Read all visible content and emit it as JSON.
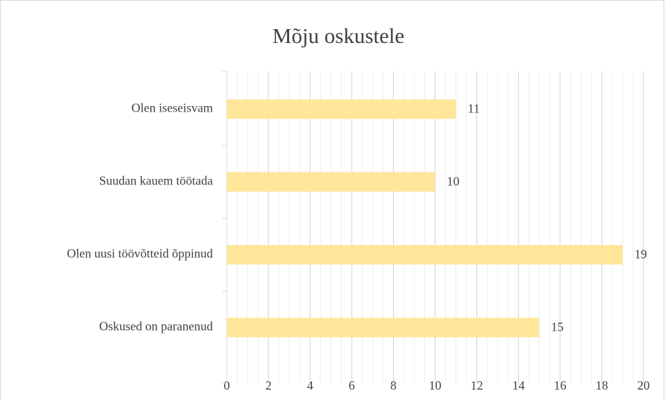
{
  "chart_data": {
    "type": "bar",
    "orientation": "horizontal",
    "title": "Mõju oskustele",
    "categories": [
      "Olen iseseisvam",
      "Suudan kauem töötada",
      "Olen uusi töövõtteid õppinud",
      "Oskused on paranenud"
    ],
    "values": [
      11,
      10,
      19,
      15
    ],
    "color": "#ffe699",
    "xlim": [
      0,
      20
    ],
    "xticks": [
      0,
      2,
      4,
      6,
      8,
      10,
      12,
      14,
      16,
      18,
      20
    ],
    "grid": true,
    "minor_grid": true
  }
}
